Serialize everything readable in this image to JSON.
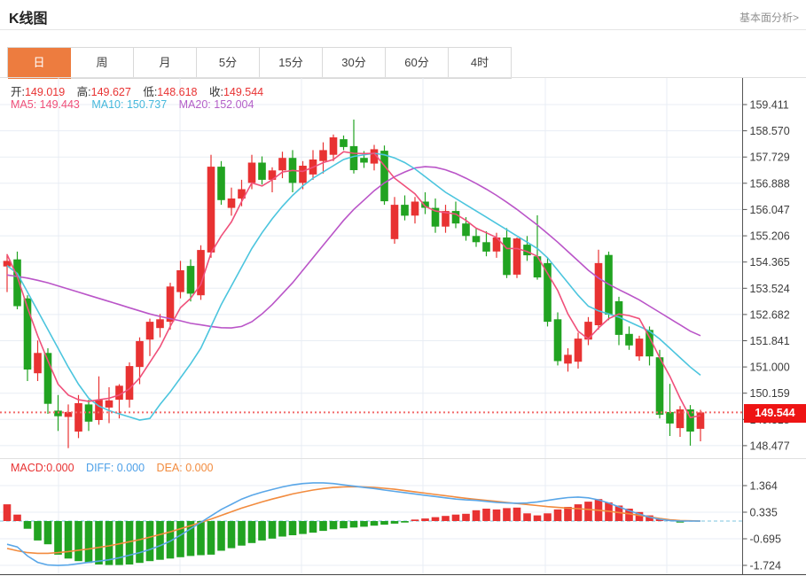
{
  "header": {
    "title": "K线图",
    "link": "基本面分析>"
  },
  "tabs": [
    {
      "label": "日",
      "active": true
    },
    {
      "label": "周",
      "active": false
    },
    {
      "label": "月",
      "active": false
    },
    {
      "label": "5分",
      "active": false
    },
    {
      "label": "15分",
      "active": false
    },
    {
      "label": "30分",
      "active": false
    },
    {
      "label": "60分",
      "active": false
    },
    {
      "label": "4时",
      "active": false
    }
  ],
  "info": {
    "ohlc": [
      {
        "label": "开:",
        "value": "149.019"
      },
      {
        "label": "高:",
        "value": "149.627"
      },
      {
        "label": "低:",
        "value": "148.618"
      },
      {
        "label": "收:",
        "value": "149.544"
      }
    ],
    "ma": [
      {
        "label": "MA5:",
        "value": "149.443"
      },
      {
        "label": "MA10:",
        "value": "150.737"
      },
      {
        "label": "MA20:",
        "value": "152.004"
      }
    ],
    "macd": [
      {
        "label": "MACD:",
        "value": "0.000"
      },
      {
        "label": "DIFF:",
        "value": "0.000"
      },
      {
        "label": "DEA:",
        "value": "0.000"
      }
    ]
  },
  "price_badge": "149.544",
  "chart_data": {
    "type": "candlestick+macd",
    "title": "K线图",
    "price_axis_ticks": [
      "159.411",
      "158.570",
      "157.729",
      "156.888",
      "156.047",
      "155.206",
      "154.365",
      "153.524",
      "152.682",
      "151.841",
      "151.000",
      "150.159",
      "149.318",
      "148.477"
    ],
    "price_axis_range": [
      148.477,
      159.411
    ],
    "last_price_line": 149.544,
    "candles_ohlc": [
      [
        154.22,
        154.62,
        153.4,
        154.4
      ],
      [
        154.45,
        154.7,
        152.85,
        152.95
      ],
      [
        153.2,
        153.3,
        150.55,
        150.92
      ],
      [
        150.8,
        151.85,
        150.55,
        151.45
      ],
      [
        151.45,
        151.6,
        149.5,
        149.82
      ],
      [
        149.6,
        150.1,
        148.95,
        149.42
      ],
      [
        149.4,
        149.8,
        148.4,
        149.56
      ],
      [
        148.93,
        150.1,
        148.72,
        149.84
      ],
      [
        149.8,
        149.95,
        148.95,
        149.25
      ],
      [
        149.3,
        150.7,
        149.15,
        149.95
      ],
      [
        149.7,
        150.35,
        149.2,
        149.93
      ],
      [
        149.95,
        150.45,
        149.35,
        150.4
      ],
      [
        149.95,
        151.15,
        149.7,
        151.03
      ],
      [
        151.0,
        151.95,
        150.45,
        151.83
      ],
      [
        151.88,
        152.55,
        151.35,
        152.45
      ],
      [
        152.25,
        152.7,
        151.95,
        152.53
      ],
      [
        152.45,
        153.7,
        152.2,
        153.58
      ],
      [
        153.4,
        154.4,
        153.2,
        154.1
      ],
      [
        154.24,
        154.45,
        153.1,
        153.35
      ],
      [
        153.3,
        154.9,
        153.15,
        154.75
      ],
      [
        154.67,
        157.8,
        154.5,
        157.42
      ],
      [
        157.42,
        157.6,
        156.2,
        156.35
      ],
      [
        156.1,
        156.75,
        155.85,
        156.4
      ],
      [
        156.4,
        157.0,
        156.15,
        156.7
      ],
      [
        156.9,
        157.8,
        156.7,
        157.55
      ],
      [
        157.55,
        157.75,
        156.85,
        157.0
      ],
      [
        157.0,
        157.4,
        156.6,
        157.3
      ],
      [
        157.3,
        157.9,
        157.05,
        157.7
      ],
      [
        157.7,
        157.95,
        156.6,
        156.9
      ],
      [
        156.9,
        157.6,
        156.7,
        157.45
      ],
      [
        157.17,
        157.95,
        157.0,
        157.65
      ],
      [
        157.6,
        158.2,
        157.2,
        157.95
      ],
      [
        157.8,
        158.45,
        157.6,
        158.36
      ],
      [
        158.3,
        158.42,
        157.95,
        158.05
      ],
      [
        158.08,
        158.93,
        157.2,
        157.31
      ],
      [
        157.7,
        157.92,
        157.38,
        157.55
      ],
      [
        157.52,
        158.12,
        157.3,
        157.98
      ],
      [
        157.93,
        158.1,
        156.2,
        156.31
      ],
      [
        155.1,
        156.45,
        154.95,
        156.2
      ],
      [
        156.2,
        156.5,
        155.7,
        155.85
      ],
      [
        155.85,
        156.45,
        155.6,
        156.3
      ],
      [
        156.3,
        156.6,
        155.9,
        156.1
      ],
      [
        156.1,
        156.4,
        155.3,
        155.5
      ],
      [
        155.5,
        156.2,
        155.3,
        156.0
      ],
      [
        156.0,
        156.3,
        155.45,
        155.6
      ],
      [
        155.6,
        155.8,
        155.05,
        155.2
      ],
      [
        155.2,
        155.45,
        154.85,
        155.0
      ],
      [
        155.0,
        155.35,
        154.55,
        154.7
      ],
      [
        154.7,
        155.3,
        154.5,
        155.15
      ],
      [
        155.15,
        155.45,
        153.85,
        153.95
      ],
      [
        153.96,
        155.15,
        153.85,
        155.12
      ],
      [
        154.92,
        155.2,
        154.4,
        154.58
      ],
      [
        154.55,
        155.86,
        153.8,
        153.87
      ],
      [
        154.33,
        154.5,
        152.3,
        152.45
      ],
      [
        152.53,
        152.75,
        151.05,
        151.19
      ],
      [
        151.11,
        151.6,
        150.85,
        151.39
      ],
      [
        151.17,
        152.1,
        150.95,
        151.91
      ],
      [
        151.88,
        152.6,
        151.7,
        152.45
      ],
      [
        152.34,
        154.76,
        152.2,
        154.33
      ],
      [
        154.59,
        154.7,
        152.5,
        152.68
      ],
      [
        153.11,
        153.25,
        151.7,
        152.03
      ],
      [
        152.06,
        152.3,
        151.55,
        151.69
      ],
      [
        151.34,
        152.0,
        151.2,
        151.91
      ],
      [
        152.19,
        152.3,
        151.05,
        151.34
      ],
      [
        151.31,
        151.55,
        149.35,
        149.47
      ],
      [
        149.56,
        150.46,
        148.79,
        149.19
      ],
      [
        149.04,
        149.75,
        148.76,
        149.64
      ],
      [
        149.64,
        149.78,
        148.48,
        148.93
      ],
      [
        149.019,
        149.627,
        148.618,
        149.544
      ]
    ],
    "ma5": [
      154.6,
      153.9,
      152.9,
      152.0,
      151.2,
      150.45,
      150.1,
      149.95,
      149.9,
      149.95,
      150.0,
      150.1,
      150.3,
      150.65,
      151.15,
      151.65,
      152.3,
      152.9,
      153.2,
      153.65,
      154.65,
      155.2,
      155.65,
      156.3,
      156.9,
      156.8,
      157.0,
      157.25,
      157.3,
      157.27,
      157.4,
      157.55,
      157.65,
      157.9,
      157.85,
      157.84,
      157.85,
      157.45,
      157.05,
      156.8,
      156.55,
      156.15,
      156.0,
      155.95,
      155.9,
      155.7,
      155.45,
      155.3,
      155.15,
      154.8,
      154.8,
      154.7,
      154.55,
      154.0,
      153.45,
      152.7,
      152.15,
      151.9,
      152.25,
      152.55,
      152.7,
      152.65,
      152.55,
      151.95,
      151.3,
      150.7,
      150.0,
      149.38,
      149.443
    ],
    "ma10": [
      154.25,
      154.0,
      153.4,
      152.8,
      152.2,
      151.6,
      151.0,
      150.45,
      150.0,
      149.75,
      149.6,
      149.5,
      149.4,
      149.3,
      149.35,
      149.8,
      150.2,
      150.65,
      151.1,
      151.6,
      152.3,
      153.0,
      153.6,
      154.2,
      154.8,
      155.3,
      155.75,
      156.15,
      156.5,
      156.8,
      157.05,
      157.25,
      157.45,
      157.65,
      157.75,
      157.8,
      157.85,
      157.8,
      157.7,
      157.55,
      157.35,
      157.1,
      156.85,
      156.6,
      156.4,
      156.2,
      156.0,
      155.8,
      155.6,
      155.4,
      155.2,
      155.0,
      154.8,
      154.5,
      154.1,
      153.7,
      153.3,
      152.95,
      152.8,
      152.7,
      152.6,
      152.45,
      152.3,
      152.15,
      151.9,
      151.6,
      151.3,
      151.0,
      150.737
    ],
    "ma20": [
      153.95,
      153.9,
      153.85,
      153.78,
      153.7,
      153.6,
      153.5,
      153.4,
      153.3,
      153.2,
      153.1,
      153.0,
      152.9,
      152.8,
      152.7,
      152.62,
      152.55,
      152.48,
      152.4,
      152.35,
      152.3,
      152.26,
      152.25,
      152.3,
      152.45,
      152.7,
      153.0,
      153.35,
      153.7,
      154.1,
      154.5,
      154.9,
      155.3,
      155.7,
      156.05,
      156.35,
      156.65,
      156.9,
      157.1,
      157.25,
      157.38,
      157.42,
      157.4,
      157.32,
      157.2,
      157.05,
      156.88,
      156.7,
      156.5,
      156.28,
      156.05,
      155.8,
      155.55,
      155.28,
      155.0,
      154.7,
      154.4,
      154.1,
      153.85,
      153.65,
      153.48,
      153.32,
      153.15,
      152.95,
      152.75,
      152.55,
      152.35,
      152.15,
      152.004
    ],
    "macd": {
      "axis_ticks": [
        "1.364",
        "0.335",
        "-0.695",
        "-1.724"
      ],
      "axis_range": [
        -1.724,
        1.364
      ],
      "hist": [
        0.65,
        0.25,
        -0.3,
        -0.75,
        -0.9,
        -1.3,
        -1.45,
        -1.55,
        -1.62,
        -1.68,
        -1.7,
        -1.7,
        -1.68,
        -1.62,
        -1.55,
        -1.5,
        -1.45,
        -1.4,
        -1.35,
        -1.32,
        -1.3,
        -1.15,
        -1.05,
        -0.95,
        -0.85,
        -0.75,
        -0.68,
        -0.6,
        -0.55,
        -0.5,
        -0.45,
        -0.38,
        -0.32,
        -0.28,
        -0.25,
        -0.22,
        -0.18,
        -0.14,
        -0.1,
        -0.06,
        0.06,
        0.1,
        0.15,
        0.2,
        0.25,
        0.28,
        0.42,
        0.48,
        0.45,
        0.5,
        0.52,
        0.3,
        0.22,
        0.3,
        0.45,
        0.55,
        0.65,
        0.75,
        0.85,
        0.72,
        0.6,
        0.48,
        0.35,
        0.22,
        0.1,
        0.04,
        -0.06,
        0.0,
        0.0
      ],
      "diff": [
        -0.9,
        -1.0,
        -1.35,
        -1.6,
        -1.7,
        -1.72,
        -1.7,
        -1.65,
        -1.6,
        -1.55,
        -1.5,
        -1.42,
        -1.32,
        -1.22,
        -1.1,
        -0.95,
        -0.78,
        -0.55,
        -0.3,
        -0.05,
        0.2,
        0.45,
        0.65,
        0.85,
        1.0,
        1.12,
        1.22,
        1.32,
        1.4,
        1.45,
        1.48,
        1.48,
        1.45,
        1.4,
        1.35,
        1.3,
        1.26,
        1.2,
        1.15,
        1.1,
        1.05,
        1.0,
        0.95,
        0.9,
        0.85,
        0.82,
        0.8,
        0.76,
        0.72,
        0.7,
        0.69,
        0.7,
        0.74,
        0.8,
        0.86,
        0.91,
        0.93,
        0.9,
        0.82,
        0.7,
        0.55,
        0.4,
        0.27,
        0.15,
        0.07,
        0.02,
        0.0,
        0.0,
        0.0
      ],
      "dea": [
        -1.06,
        -1.15,
        -1.22,
        -1.25,
        -1.25,
        -1.22,
        -1.18,
        -1.13,
        -1.08,
        -1.02,
        -0.96,
        -0.88,
        -0.8,
        -0.72,
        -0.62,
        -0.52,
        -0.42,
        -0.3,
        -0.18,
        -0.05,
        0.08,
        0.22,
        0.36,
        0.5,
        0.62,
        0.74,
        0.85,
        0.95,
        1.05,
        1.13,
        1.2,
        1.26,
        1.3,
        1.32,
        1.33,
        1.32,
        1.3,
        1.27,
        1.23,
        1.18,
        1.13,
        1.08,
        1.03,
        0.98,
        0.93,
        0.88,
        0.84,
        0.8,
        0.76,
        0.72,
        0.68,
        0.64,
        0.6,
        0.56,
        0.53,
        0.5,
        0.48,
        0.45,
        0.42,
        0.38,
        0.33,
        0.28,
        0.22,
        0.16,
        0.1,
        0.05,
        0.02,
        0.01,
        0.0
      ]
    },
    "colors": {
      "up": "#e83232",
      "down": "#21a321",
      "ma5": "#f0507a",
      "ma10": "#4cc5de",
      "ma20": "#ba55c8",
      "diff": "#5aa7e8",
      "dea": "#f28b3e",
      "grid": "#e8edf4",
      "axis_line": "#555",
      "tick_text": "#3c3c3c",
      "dotted_line": "#f26a6a",
      "zero_dash": "#a9d9ea",
      "badge_bg": "#ee1414"
    },
    "legend": {
      "position": "top-left-overlay",
      "grid": true,
      "x_labels": "none"
    }
  }
}
